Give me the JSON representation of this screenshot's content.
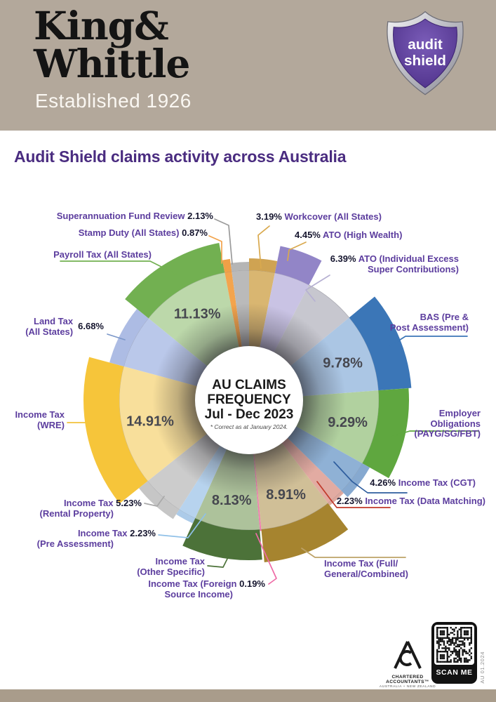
{
  "header": {
    "brand_line1": "King&",
    "brand_line2": "Whittle",
    "tagline": "Established 1926",
    "logo_line1": "audit",
    "logo_line2": "shield"
  },
  "page_title": "Audit Shield claims activity across Australia",
  "chart_data": {
    "type": "pie",
    "style": "donut with protruding outer wedges",
    "center_title_lines": [
      "AU CLAIMS",
      "FREQUENCY",
      "Jul - Dec 2023"
    ],
    "center_footnote": "* Correct as at January 2024.",
    "units": "%",
    "order": "clockwise from 12 o'clock",
    "total": 100,
    "segments": [
      {
        "id": "workcover",
        "lines": [
          "Workcover (All States)"
        ],
        "pct": "3.19%",
        "value": 3.19,
        "pct_pos": "before",
        "inside_pct": false,
        "inner": "#d9b671",
        "outer": "#cfa352",
        "leader": "#d9a94e"
      },
      {
        "id": "ato_hw",
        "lines": [
          "ATO (High Wealth)"
        ],
        "pct": "4.45%",
        "value": 4.45,
        "pct_pos": "before",
        "inside_pct": false,
        "inner": "#c9c3e4",
        "outer": "#9285c7",
        "leader": "#d9a94e"
      },
      {
        "id": "ato_iesc",
        "lines": [
          "ATO (Individual Excess",
          "Super Contributions)"
        ],
        "pct": "6.39%",
        "value": 6.39,
        "pct_pos": "before",
        "inside_pct": false,
        "inner": "#c7c7cf",
        "outer": "#bfbfc9",
        "leader": "#b6b0d2"
      },
      {
        "id": "bas",
        "lines": [
          "BAS (Pre &",
          "Post Assessment)"
        ],
        "pct": "9.78%",
        "value": 9.78,
        "pct_pos": "inside",
        "inside_pct": true,
        "inner": "#abc6e4",
        "outer": "#3b76b7",
        "leader": "#3b76b7"
      },
      {
        "id": "eo",
        "lines": [
          "Employer",
          "Obligations",
          "(PAYG/SG/FBT)"
        ],
        "pct": "9.29%",
        "value": 9.29,
        "pct_pos": "inside",
        "inside_pct": true,
        "inner": "#b1d19f",
        "outer": "#5fa73f",
        "leader": "#5fa73f"
      },
      {
        "id": "cgt",
        "lines": [
          "Income Tax (CGT)"
        ],
        "pct": "4.26%",
        "value": 4.26,
        "pct_pos": "before",
        "inside_pct": false,
        "inner": "#8fb1d5",
        "outer": "#86a9d0",
        "leader": "#2f5e9e"
      },
      {
        "id": "dm",
        "lines": [
          "Income Tax (Data Matching)"
        ],
        "pct": "2.23%",
        "value": 2.23,
        "pct_pos": "before",
        "inside_pct": false,
        "inner": "#e2aba2",
        "outer": "#dda79d",
        "leader": "#c0392b"
      },
      {
        "id": "fullgen",
        "lines": [
          "Income Tax (Full/",
          "General/Combined)"
        ],
        "pct": "8.91%",
        "value": 8.91,
        "pct_pos": "inside",
        "inside_pct": true,
        "inner": "#d0bf97",
        "outer": "#a6842f",
        "leader": "#bda268"
      },
      {
        "id": "foreign",
        "lines": [
          "Income Tax (Foreign",
          "Source Income)"
        ],
        "pct": "0.19%",
        "value": 0.19,
        "pct_pos": "after-line1",
        "inside_pct": false,
        "inner": "#f07fb0",
        "outer": "#ee6ba6",
        "leader": "#ee6ba6"
      },
      {
        "id": "otherspec",
        "lines": [
          "Income Tax",
          "(Other Specific)"
        ],
        "pct": "8.13%",
        "value": 8.13,
        "pct_pos": "inside",
        "inside_pct": true,
        "inner": "#adc29b",
        "outer": "#4c7239",
        "leader": "#4c7239"
      },
      {
        "id": "preassess",
        "lines": [
          "Income Tax",
          "(Pre Assessment)"
        ],
        "pct": "2.23%",
        "value": 2.23,
        "pct_pos": "after-line1",
        "inside_pct": false,
        "inner": "#b7d3ee",
        "outer": "#accbe9",
        "leader": "#8fc0e8"
      },
      {
        "id": "rental",
        "lines": [
          "Income Tax",
          "(Rental Property)"
        ],
        "pct": "5.23%",
        "value": 5.23,
        "pct_pos": "after-line1",
        "inside_pct": false,
        "inner": "#cccccc",
        "outer": "#c6c6c6",
        "leader": "#a9a9a9"
      },
      {
        "id": "wre",
        "lines": [
          "Income Tax",
          "(WRE)"
        ],
        "pct": "14.91%",
        "value": 14.91,
        "pct_pos": "inside",
        "inside_pct": true,
        "inner": "#f8df9b",
        "outer": "#f6c53a",
        "leader": "#f2c33c"
      },
      {
        "id": "land",
        "lines": [
          "Land Tax",
          "(All States)"
        ],
        "pct": "6.68%",
        "value": 6.68,
        "pct_pos": "right",
        "inside_pct": false,
        "inner": "#bac8ea",
        "outer": "#adbce4",
        "leader": "#7b97c9"
      },
      {
        "id": "payroll",
        "lines": [
          "Payroll Tax (All States)"
        ],
        "pct": "11.13%",
        "value": 11.13,
        "pct_pos": "inside",
        "inside_pct": true,
        "inner": "#bcd8aa",
        "outer": "#72b051",
        "leader": "#72b051"
      },
      {
        "id": "stamp",
        "lines": [
          "Stamp Duty (All States)"
        ],
        "pct": "0.87%",
        "value": 0.87,
        "pct_pos": "after",
        "inside_pct": false,
        "inner": "#f3a44d",
        "outer": "#f0a047",
        "leader": "#f2a34b"
      },
      {
        "id": "super",
        "lines": [
          "Superannuation Fund Review"
        ],
        "pct": "2.13%",
        "value": 2.13,
        "pct_pos": "after",
        "inside_pct": false,
        "inner": "#bababa",
        "outer": "#b5b5b5",
        "leader": "#9b9b9b"
      }
    ]
  },
  "footer": {
    "ca_title": "CHARTERED ACCOUNTANTS™",
    "ca_sub": "AUSTRALIA + NEW ZEALAND",
    "qr_label": "SCAN ME",
    "doc_code": "AU 01.2024"
  },
  "colors": {
    "header_bg": "#b3a89b",
    "footer_bg": "#a99c8b",
    "title_purple": "#4a2c80",
    "label_purple": "#5c3d9e",
    "pct_dark": "#15152e",
    "shield_purple": "#5a3d99"
  }
}
